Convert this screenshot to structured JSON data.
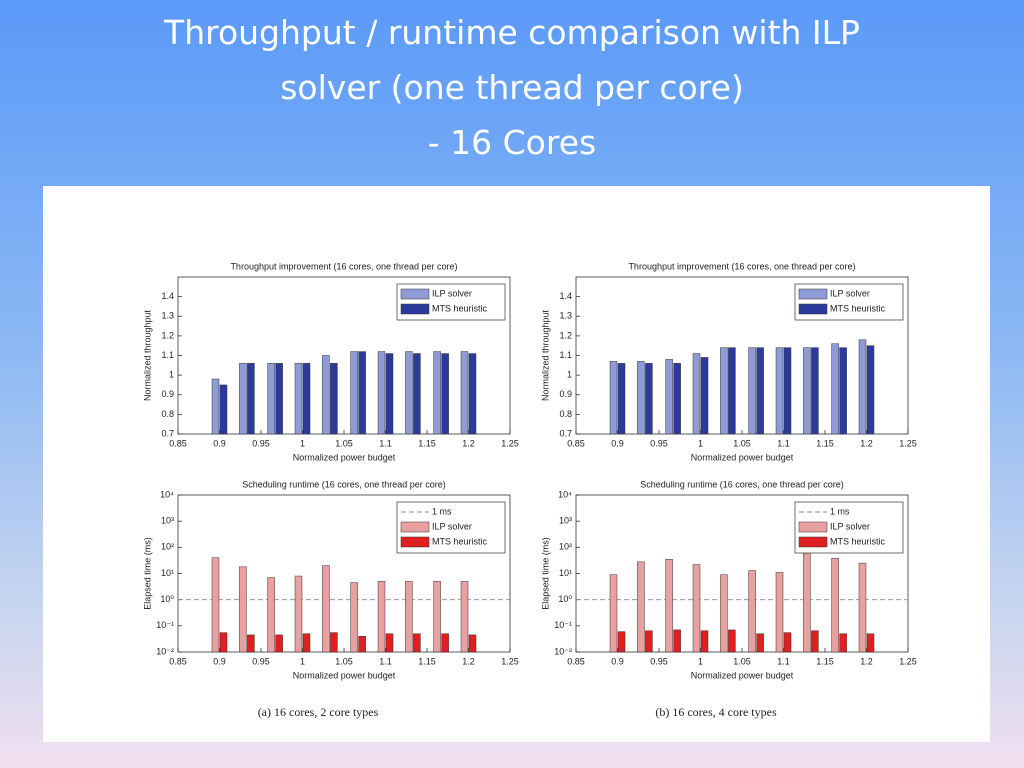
{
  "title": [
    "Throughput / runtime comparison with ILP",
    "solver (one thread per core)",
    "- 16 Cores"
  ],
  "captions": [
    "(a) 16 cores, 2 core types",
    "(b) 16 cores, 4 core types"
  ],
  "chart_data": [
    {
      "type": "bar",
      "title": "Throughput improvement (16 cores, one thread per core)",
      "x_label": "Normalized power budget",
      "y_label": "Normalized throughput",
      "x": [
        0.9,
        0.933,
        0.967,
        1.0,
        1.033,
        1.067,
        1.1,
        1.133,
        1.167,
        1.2
      ],
      "series": [
        {
          "name": "ILP solver",
          "color": "#8f9bd6",
          "values": [
            0.98,
            1.06,
            1.06,
            1.06,
            1.1,
            1.12,
            1.12,
            1.12,
            1.12,
            1.12
          ]
        },
        {
          "name": "MTS heuristic",
          "color": "#2b3a9b",
          "values": [
            0.95,
            1.06,
            1.06,
            1.06,
            1.06,
            1.12,
            1.11,
            1.11,
            1.11,
            1.11
          ]
        }
      ],
      "xlim": [
        0.85,
        1.25
      ],
      "xticks": [
        0.85,
        0.9,
        0.95,
        1,
        1.05,
        1.1,
        1.15,
        1.2,
        1.25
      ],
      "ylim": [
        0.7,
        1.5
      ],
      "yticks": [
        0.7,
        0.8,
        0.9,
        1,
        1.1,
        1.2,
        1.3,
        1.4
      ],
      "legend": "upper right"
    },
    {
      "type": "bar",
      "title": "Throughput improvement (16 cores, one thread per core)",
      "x_label": "Normalized power budget",
      "y_label": "Normalized throughput",
      "x": [
        0.9,
        0.933,
        0.967,
        1.0,
        1.033,
        1.067,
        1.1,
        1.133,
        1.167,
        1.2
      ],
      "series": [
        {
          "name": "ILP solver",
          "color": "#8f9bd6",
          "values": [
            1.07,
            1.07,
            1.08,
            1.11,
            1.14,
            1.14,
            1.14,
            1.14,
            1.16,
            1.18
          ]
        },
        {
          "name": "MTS heuristic",
          "color": "#2b3a9b",
          "values": [
            1.06,
            1.06,
            1.06,
            1.09,
            1.14,
            1.14,
            1.14,
            1.14,
            1.14,
            1.15
          ]
        }
      ],
      "xlim": [
        0.85,
        1.25
      ],
      "xticks": [
        0.85,
        0.9,
        0.95,
        1,
        1.05,
        1.1,
        1.15,
        1.2,
        1.25
      ],
      "ylim": [
        0.7,
        1.5
      ],
      "yticks": [
        0.7,
        0.8,
        0.9,
        1,
        1.1,
        1.2,
        1.3,
        1.4
      ],
      "legend": "upper right"
    },
    {
      "type": "bar",
      "title": "Scheduling runtime (16 cores, one thread per core)",
      "x_label": "Normalized power budget",
      "y_label": "Elapsed time (ms)",
      "log_y": true,
      "x": [
        0.9,
        0.933,
        0.967,
        1.0,
        1.033,
        1.067,
        1.1,
        1.133,
        1.167,
        1.2
      ],
      "reference": {
        "name": "1 ms",
        "value": 1
      },
      "series": [
        {
          "name": "ILP solver",
          "color": "#e8a0a0",
          "values": [
            40,
            18,
            7,
            8,
            20,
            4.5,
            5,
            5,
            5,
            5
          ]
        },
        {
          "name": "MTS heuristic",
          "color": "#e02020",
          "values": [
            0.055,
            0.045,
            0.045,
            0.05,
            0.055,
            0.04,
            0.05,
            0.05,
            0.05,
            0.045
          ]
        }
      ],
      "xlim": [
        0.85,
        1.25
      ],
      "xticks": [
        0.85,
        0.9,
        0.95,
        1,
        1.05,
        1.1,
        1.15,
        1.2,
        1.25
      ],
      "ylim": [
        0.01,
        10000
      ],
      "yticks": [
        {
          "value": 0.01,
          "label": "10⁻²"
        },
        {
          "value": 0.1,
          "label": "10⁻¹"
        },
        {
          "value": 1,
          "label": "10⁰"
        },
        {
          "value": 10,
          "label": "10¹"
        },
        {
          "value": 100,
          "label": "10²"
        },
        {
          "value": 1000,
          "label": "10³"
        },
        {
          "value": 10000,
          "label": "10⁴"
        }
      ],
      "legend": "upper right"
    },
    {
      "type": "bar",
      "title": "Scheduling runtime (16 cores, one thread per core)",
      "x_label": "Normalized power budget",
      "y_label": "Elapsed time (ms)",
      "log_y": true,
      "x": [
        0.9,
        0.933,
        0.967,
        1.0,
        1.033,
        1.067,
        1.1,
        1.133,
        1.167,
        1.2
      ],
      "reference": {
        "name": "1 ms",
        "value": 1
      },
      "series": [
        {
          "name": "ILP solver",
          "color": "#e8a0a0",
          "values": [
            9,
            28,
            35,
            22,
            9,
            13,
            11,
            60,
            38,
            25
          ]
        },
        {
          "name": "MTS heuristic",
          "color": "#e02020",
          "values": [
            0.06,
            0.065,
            0.07,
            0.065,
            0.07,
            0.05,
            0.055,
            0.065,
            0.05,
            0.05
          ]
        }
      ],
      "xlim": [
        0.85,
        1.25
      ],
      "xticks": [
        0.85,
        0.9,
        0.95,
        1,
        1.05,
        1.1,
        1.15,
        1.2,
        1.25
      ],
      "ylim": [
        0.01,
        10000
      ],
      "yticks": [
        {
          "value": 0.01,
          "label": "10⁻²"
        },
        {
          "value": 0.1,
          "label": "10⁻¹"
        },
        {
          "value": 1,
          "label": "10⁰"
        },
        {
          "value": 10,
          "label": "10¹"
        },
        {
          "value": 100,
          "label": "10²"
        },
        {
          "value": 1000,
          "label": "10³"
        },
        {
          "value": 10000,
          "label": "10⁴"
        }
      ],
      "legend": "upper right"
    }
  ]
}
